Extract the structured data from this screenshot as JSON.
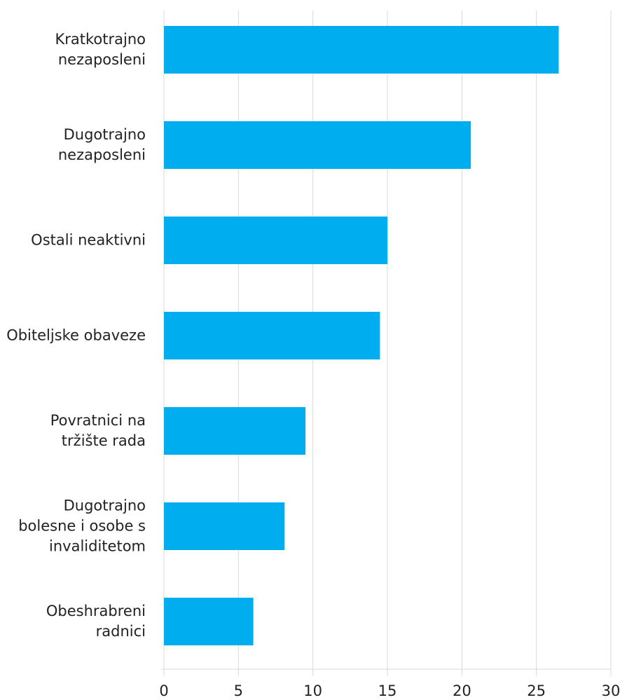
{
  "chart_data": {
    "type": "bar",
    "orientation": "horizontal",
    "categories": [
      "Kratkotrajno nezaposleni",
      "Dugotrajno nezaposleni",
      "Ostali neaktivni",
      "Obiteljske obaveze",
      "Povratnici na tržište rada",
      "Dugotrajno bolesne i osobe s invaliditetom",
      "Obeshrabreni radnici"
    ],
    "values": [
      26.5,
      20.6,
      15.0,
      14.5,
      9.5,
      8.1,
      6.0
    ],
    "color": "#00aeef",
    "xlim": [
      0,
      30
    ],
    "xticks": [
      0,
      5,
      10,
      15,
      20,
      25,
      30
    ],
    "grid": true
  }
}
